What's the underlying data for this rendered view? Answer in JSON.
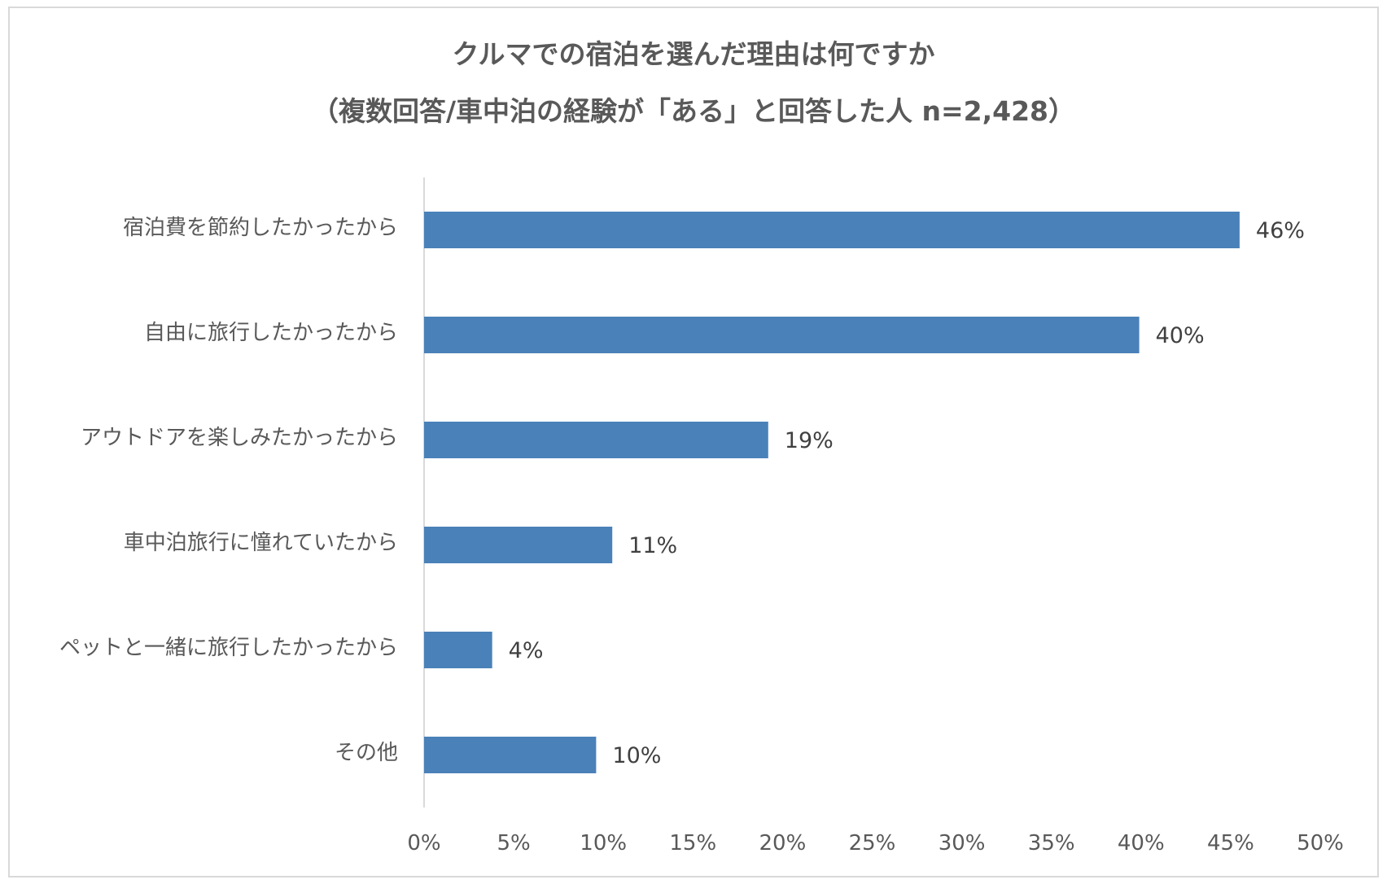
{
  "chart_data": {
    "type": "bar",
    "orientation": "horizontal",
    "title": "クルマでの宿泊を選んだ理由は何ですか",
    "subtitle": "（複数回答/車中泊の経験が「ある」と回答した人 n=2,428）",
    "categories": [
      "宿泊費を節約したかったから",
      "自由に旅行したかったから",
      "アウトドアを楽しみたかったから",
      "車中泊旅行に憧れていたから",
      "ペットと一緒に旅行したかったから",
      "その他"
    ],
    "values": [
      45.5,
      39.9,
      19.2,
      10.5,
      3.8,
      9.6
    ],
    "value_labels": [
      "46%",
      "40%",
      "19%",
      "11%",
      "4%",
      "10%"
    ],
    "xlim": [
      0,
      50
    ],
    "xticks": [
      0,
      5,
      10,
      15,
      20,
      25,
      30,
      35,
      40,
      45,
      50
    ],
    "xtick_labels": [
      "0%",
      "5%",
      "10%",
      "15%",
      "20%",
      "25%",
      "30%",
      "35%",
      "40%",
      "45%",
      "50%"
    ],
    "bar_color": "#4a81b9",
    "grid": false,
    "legend": "none"
  }
}
